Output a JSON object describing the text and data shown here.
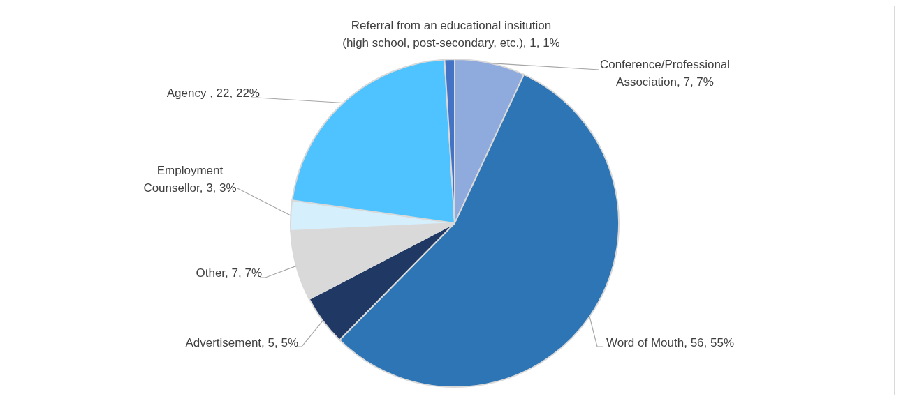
{
  "chart_data": {
    "type": "pie",
    "categories": [
      "Conference/Professional Association",
      "Word of Mouth",
      "Advertisement",
      "Other",
      "Employment Counsellor",
      "Agency ",
      "Referral from an educational insitution (high school, post-secondary, etc.)"
    ],
    "values": [
      7,
      56,
      5,
      7,
      3,
      22,
      1
    ],
    "value_labels": [
      "7, 7%",
      "56, 55%",
      "5, 5%",
      "7, 7%",
      "3, 3%",
      "22, 22%",
      "1, 1%"
    ],
    "colors": [
      "#8faadc",
      "#2e75b6",
      "#203864",
      "#d9d9d9",
      "#d6effc",
      "#4fc3ff",
      "#4472c4"
    ],
    "legend": false
  }
}
